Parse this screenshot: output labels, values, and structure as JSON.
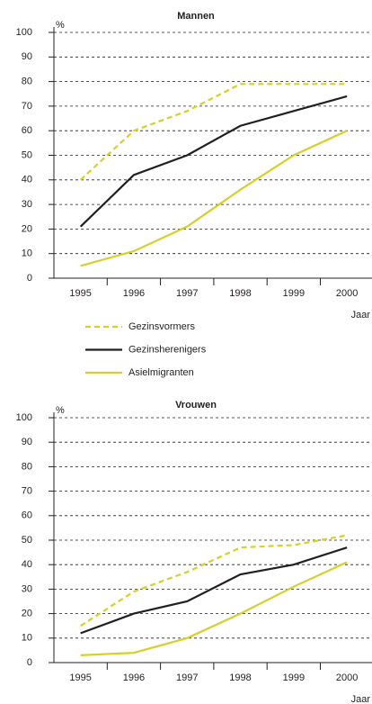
{
  "chart_data": [
    {
      "type": "line",
      "title": "Mannen",
      "y_label": "%",
      "x_label": "Jaar",
      "categories": [
        "1995",
        "1996",
        "1997",
        "1998",
        "1999",
        "2000"
      ],
      "ylim": [
        0,
        100
      ],
      "yticks": [
        0,
        10,
        20,
        30,
        40,
        50,
        60,
        70,
        80,
        90,
        100
      ],
      "grid": true,
      "series": [
        {
          "name": "Gezinsvormers",
          "color": "#d6cf2c",
          "dashed": true,
          "values": [
            40,
            60,
            68,
            79,
            79,
            79
          ]
        },
        {
          "name": "Gezinsherenigers",
          "color": "#231f20",
          "values": [
            21,
            42,
            50,
            62,
            68,
            74
          ]
        },
        {
          "name": "Asielmigranten",
          "color": "#d6cf2c",
          "values": [
            5,
            11,
            21,
            36,
            50,
            60
          ]
        }
      ]
    },
    {
      "type": "line",
      "title": "Vrouwen",
      "y_label": "%",
      "x_label": "Jaar",
      "categories": [
        "1995",
        "1996",
        "1997",
        "1998",
        "1999",
        "2000"
      ],
      "ylim": [
        0,
        100
      ],
      "yticks": [
        0,
        10,
        20,
        30,
        40,
        50,
        60,
        70,
        80,
        90,
        100
      ],
      "grid": true,
      "series": [
        {
          "color": "#d6cf2c",
          "dashed": true,
          "values": [
            15,
            29,
            37,
            47,
            48,
            52
          ]
        },
        {
          "color": "#231f20",
          "values": [
            12,
            20,
            25,
            36,
            40,
            47
          ]
        },
        {
          "color": "#d6cf2c",
          "values": [
            3,
            4,
            10,
            20,
            31,
            41
          ]
        }
      ]
    }
  ]
}
